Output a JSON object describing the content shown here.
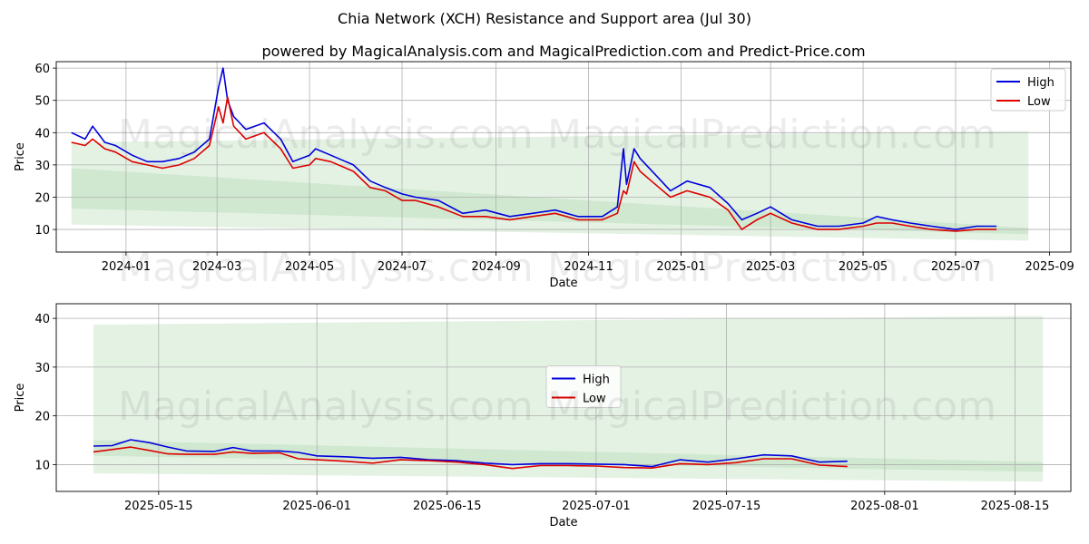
{
  "title": "Chia Network (XCH) Resistance and Support area (Jul 30)",
  "subtitle": "powered by MagicalAnalysis.com and MagicalPrediction.com and Predict-Price.com",
  "watermarks": [
    "MagicalAnalysis.com",
    "MagicalPrediction.com"
  ],
  "colors": {
    "high": "#0000dd",
    "low": "#dd0000",
    "band": "#9ccf9c",
    "grid": "#b0b0b0"
  },
  "chart_data": [
    {
      "type": "line",
      "xlabel": "Date",
      "ylabel": "Price",
      "xlim": [
        "2023-11-16",
        "2025-09-15"
      ],
      "ylim": [
        3,
        62
      ],
      "grid": true,
      "legend": "top-right",
      "x_ticks": [
        "2024-01",
        "2024-03",
        "2024-05",
        "2024-07",
        "2024-09",
        "2024-11",
        "2025-01",
        "2025-03",
        "2025-05",
        "2025-07",
        "2025-09"
      ],
      "y_ticks": [
        10,
        20,
        30,
        40,
        50,
        60
      ],
      "bands": [
        {
          "x": [
            "2023-11-26",
            "2025-08-18"
          ],
          "upper": [
            37,
            40.5
          ],
          "lower": [
            11.5,
            6.5
          ]
        },
        {
          "x": [
            "2023-11-26",
            "2025-08-18"
          ],
          "upper": [
            29,
            10.5
          ],
          "lower": [
            16.5,
            8.5
          ]
        }
      ],
      "series": [
        {
          "name": "High",
          "x": [
            "2023-11-26",
            "2023-12-05",
            "2023-12-10",
            "2023-12-18",
            "2023-12-25",
            "2024-01-05",
            "2024-01-15",
            "2024-01-25",
            "2024-02-05",
            "2024-02-15",
            "2024-02-25",
            "2024-03-02",
            "2024-03-05",
            "2024-03-08",
            "2024-03-12",
            "2024-03-20",
            "2024-04-01",
            "2024-04-12",
            "2024-04-20",
            "2024-05-01",
            "2024-05-05",
            "2024-05-15",
            "2024-05-30",
            "2024-06-10",
            "2024-06-20",
            "2024-07-01",
            "2024-07-10",
            "2024-07-25",
            "2024-08-10",
            "2024-08-25",
            "2024-09-10",
            "2024-09-25",
            "2024-10-10",
            "2024-10-25",
            "2024-11-10",
            "2024-11-20",
            "2024-11-24",
            "2024-11-26",
            "2024-12-01",
            "2024-12-05",
            "2024-12-15",
            "2024-12-25",
            "2025-01-05",
            "2025-01-20",
            "2025-02-01",
            "2025-02-10",
            "2025-02-20",
            "2025-03-01",
            "2025-03-15",
            "2025-04-01",
            "2025-04-15",
            "2025-05-01",
            "2025-05-10",
            "2025-05-20",
            "2025-06-01",
            "2025-06-15",
            "2025-07-01",
            "2025-07-15",
            "2025-07-28"
          ],
          "y": [
            40,
            38,
            42,
            37,
            36,
            33,
            31,
            31,
            32,
            34,
            38,
            54,
            60,
            50,
            45,
            41,
            43,
            38,
            31,
            33,
            35,
            33,
            30,
            25,
            23,
            21,
            20,
            19,
            15,
            16,
            14,
            15,
            16,
            14,
            14,
            17,
            35,
            24,
            35,
            32,
            27,
            22,
            25,
            23,
            18,
            13,
            15,
            17,
            13,
            11,
            11,
            12,
            14,
            13,
            12,
            11,
            10,
            11,
            11
          ]
        },
        {
          "name": "Low",
          "x": [
            "2023-11-26",
            "2023-12-05",
            "2023-12-10",
            "2023-12-18",
            "2023-12-25",
            "2024-01-05",
            "2024-01-15",
            "2024-01-25",
            "2024-02-05",
            "2024-02-15",
            "2024-02-25",
            "2024-03-02",
            "2024-03-05",
            "2024-03-08",
            "2024-03-12",
            "2024-03-20",
            "2024-04-01",
            "2024-04-12",
            "2024-04-20",
            "2024-05-01",
            "2024-05-05",
            "2024-05-15",
            "2024-05-30",
            "2024-06-10",
            "2024-06-20",
            "2024-07-01",
            "2024-07-10",
            "2024-07-25",
            "2024-08-10",
            "2024-08-25",
            "2024-09-10",
            "2024-09-25",
            "2024-10-10",
            "2024-10-25",
            "2024-11-10",
            "2024-11-20",
            "2024-11-24",
            "2024-11-26",
            "2024-12-01",
            "2024-12-05",
            "2024-12-15",
            "2024-12-25",
            "2025-01-05",
            "2025-01-20",
            "2025-02-01",
            "2025-02-10",
            "2025-02-20",
            "2025-03-01",
            "2025-03-15",
            "2025-04-01",
            "2025-04-15",
            "2025-05-01",
            "2025-05-10",
            "2025-05-20",
            "2025-06-01",
            "2025-06-15",
            "2025-07-01",
            "2025-07-15",
            "2025-07-28"
          ],
          "y": [
            37,
            36,
            38,
            35,
            34,
            31,
            30,
            29,
            30,
            32,
            36,
            48,
            43,
            51,
            42,
            38,
            40,
            35,
            29,
            30,
            32,
            31,
            28,
            23,
            22,
            19,
            19,
            17,
            14,
            14,
            13,
            14,
            15,
            13,
            13,
            15,
            22,
            21,
            31,
            28,
            24,
            20,
            22,
            20,
            16,
            10,
            13,
            15,
            12,
            10,
            10,
            11,
            12,
            12,
            11,
            10,
            9.5,
            10,
            10
          ]
        }
      ]
    },
    {
      "type": "line",
      "xlabel": "Date",
      "ylabel": "Price",
      "xlim": [
        "2025-05-04",
        "2025-08-21"
      ],
      "ylim": [
        4.5,
        43
      ],
      "grid": true,
      "legend": "center",
      "x_ticks": [
        "2025-05-15",
        "2025-06-01",
        "2025-06-15",
        "2025-07-01",
        "2025-07-15",
        "2025-08-01",
        "2025-08-15"
      ],
      "y_ticks": [
        10,
        20,
        30,
        40
      ],
      "bands": [
        {
          "x": [
            "2025-05-08",
            "2025-08-18"
          ],
          "upper": [
            38.7,
            40.5
          ],
          "lower": [
            8.2,
            6.5
          ]
        },
        {
          "x": [
            "2025-05-08",
            "2025-08-18"
          ],
          "upper": [
            15,
            10.5
          ],
          "lower": [
            11.8,
            8.5
          ]
        }
      ],
      "series": [
        {
          "name": "High",
          "x": [
            "2025-05-08",
            "2025-05-10",
            "2025-05-12",
            "2025-05-14",
            "2025-05-16",
            "2025-05-18",
            "2025-05-21",
            "2025-05-23",
            "2025-05-25",
            "2025-05-28",
            "2025-05-30",
            "2025-06-01",
            "2025-06-04",
            "2025-06-07",
            "2025-06-10",
            "2025-06-13",
            "2025-06-16",
            "2025-06-19",
            "2025-06-22",
            "2025-06-25",
            "2025-06-28",
            "2025-07-01",
            "2025-07-04",
            "2025-07-07",
            "2025-07-10",
            "2025-07-13",
            "2025-07-16",
            "2025-07-19",
            "2025-07-22",
            "2025-07-25",
            "2025-07-28"
          ],
          "y": [
            13.8,
            13.9,
            15.1,
            14.5,
            13.6,
            12.8,
            12.7,
            13.5,
            12.8,
            12.8,
            12.5,
            11.8,
            11.6,
            11.3,
            11.5,
            11.0,
            10.8,
            10.3,
            10.0,
            10.2,
            10.2,
            10.1,
            10.0,
            9.6,
            11.0,
            10.5,
            11.2,
            12.0,
            11.8,
            10.5,
            10.7
          ]
        },
        {
          "name": "Low",
          "x": [
            "2025-05-08",
            "2025-05-10",
            "2025-05-12",
            "2025-05-14",
            "2025-05-16",
            "2025-05-18",
            "2025-05-21",
            "2025-05-23",
            "2025-05-25",
            "2025-05-28",
            "2025-05-30",
            "2025-06-01",
            "2025-06-04",
            "2025-06-07",
            "2025-06-10",
            "2025-06-13",
            "2025-06-16",
            "2025-06-19",
            "2025-06-22",
            "2025-06-25",
            "2025-06-28",
            "2025-07-01",
            "2025-07-04",
            "2025-07-07",
            "2025-07-10",
            "2025-07-13",
            "2025-07-16",
            "2025-07-19",
            "2025-07-22",
            "2025-07-25",
            "2025-07-28"
          ],
          "y": [
            12.6,
            13.1,
            13.6,
            12.9,
            12.2,
            12.1,
            12.1,
            12.6,
            12.3,
            12.4,
            11.2,
            11.0,
            10.7,
            10.3,
            11.0,
            10.8,
            10.5,
            10.0,
            9.2,
            9.8,
            9.8,
            9.7,
            9.4,
            9.3,
            10.2,
            10.0,
            10.4,
            11.2,
            11.2,
            9.9,
            9.6
          ]
        }
      ]
    }
  ]
}
